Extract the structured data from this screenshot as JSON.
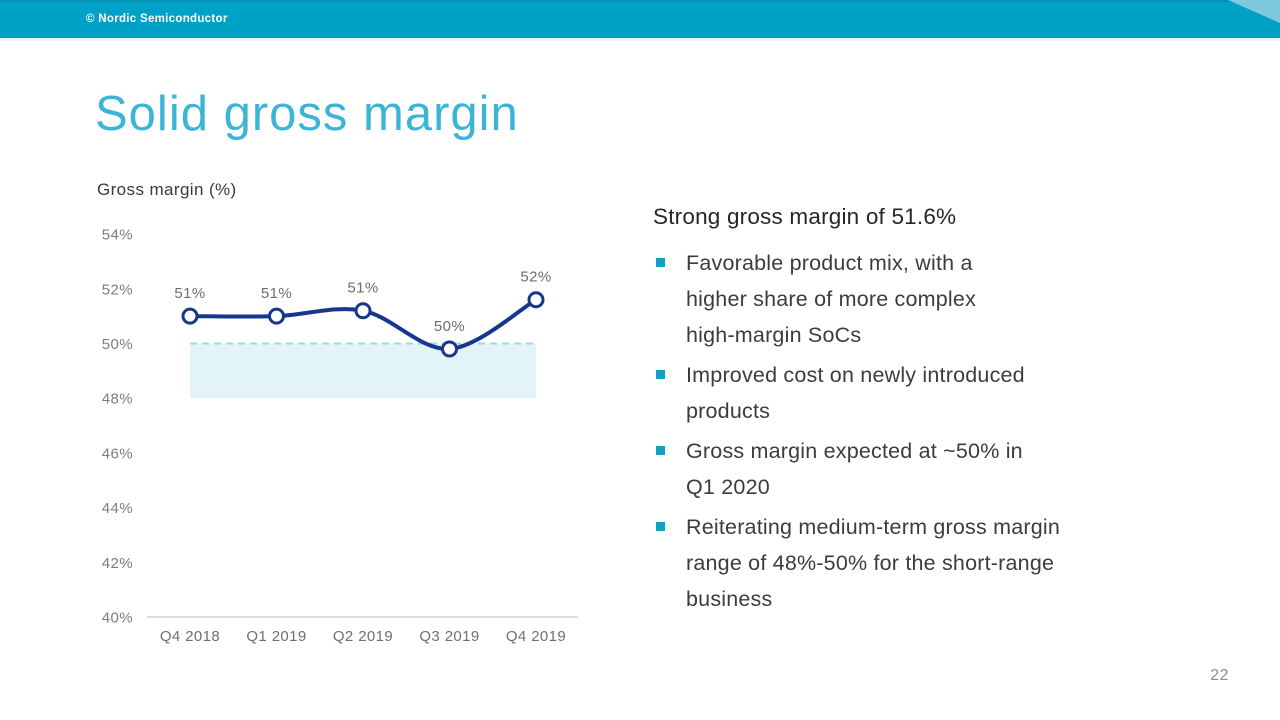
{
  "topbar": {
    "copyright": "© Nordic Semiconductor"
  },
  "title": "Solid gross margin",
  "chart_label": "Gross margin (%)",
  "chart_data": {
    "type": "line",
    "title": "Gross margin (%)",
    "categories": [
      "Q4 2018",
      "Q1 2019",
      "Q2 2019",
      "Q3 2019",
      "Q4 2019"
    ],
    "series": [
      {
        "name": "Gross margin",
        "values": [
          51.0,
          51.0,
          51.2,
          49.8,
          51.6
        ]
      }
    ],
    "point_labels": [
      "51%",
      "51%",
      "51%",
      "50%",
      "52%"
    ],
    "y_ticks": [
      "54%",
      "52%",
      "50%",
      "48%",
      "46%",
      "44%",
      "42%",
      "40%"
    ],
    "ylim": [
      40,
      54
    ],
    "grid": "baseline-only",
    "legend": "none",
    "target_band": {
      "from": 48,
      "to": 50,
      "note": "shaded band with dashed top border at 50%"
    }
  },
  "panel": {
    "heading": "Strong gross margin of 51.6%",
    "bullets": [
      {
        "lines": [
          "Favorable product mix, with a",
          "higher share of more complex",
          "high-margin SoCs"
        ]
      },
      {
        "lines": [
          "Improved cost on newly introduced",
          "products"
        ]
      },
      {
        "lines": [
          "Gross margin expected at ~50% in",
          "Q1 2020"
        ]
      },
      {
        "lines": [
          "Reiterating medium-term gross margin",
          "range of 48%-50% for the short-range",
          "business"
        ]
      }
    ]
  },
  "page_number": "22",
  "colors": {
    "brand_teal": "#00a1c6",
    "topbar_topline": "#0892b8",
    "corner_light": "#7fc9dd",
    "title_teal": "#3cb4d6",
    "line_navy": "#17378f",
    "band_fill": "#e3f4f8",
    "band_border": "#9ad9e3",
    "bullet_square": "#13a0c5"
  }
}
